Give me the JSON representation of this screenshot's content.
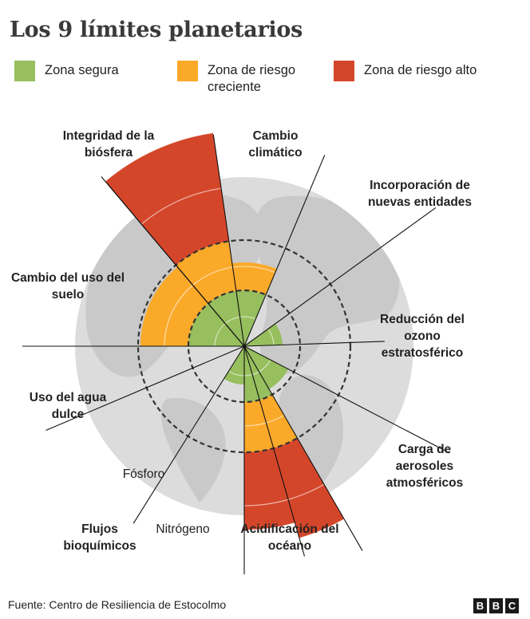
{
  "title": "Los 9 límites planetarios",
  "legend": [
    {
      "label": "Zona segura",
      "color": "#97bf5e"
    },
    {
      "label": "Zona de riesgo creciente",
      "color": "#fba929"
    },
    {
      "label": "Zona de riesgo alto",
      "color": "#d4462a"
    }
  ],
  "boundaries": {
    "biosfera": "Integridad de la biósfera",
    "clima": "Cambio climático",
    "entidades": "Incorporación de nuevas entidades",
    "ozono": "Reducción del ozono estratosférico",
    "aerosoles": "Carga de aerosoles atmosféricos",
    "oceano": "Acidificación del océano",
    "flujos": "Flujos bioquímicos",
    "fosforo": "Fósforo",
    "nitrogeno": "Nitrógeno",
    "agua": "Uso del agua dulce",
    "suelo": "Cambio del uso del suelo"
  },
  "source": "Fuente: Centro de Resiliencia de Estocolmo",
  "logo": [
    "B",
    "B",
    "C"
  ],
  "colors": {
    "safe": "#97bf5e",
    "increasing": "#fba929",
    "high": "#d4462a",
    "globe": "#dcdcdc",
    "land": "#cfcfcf"
  }
}
